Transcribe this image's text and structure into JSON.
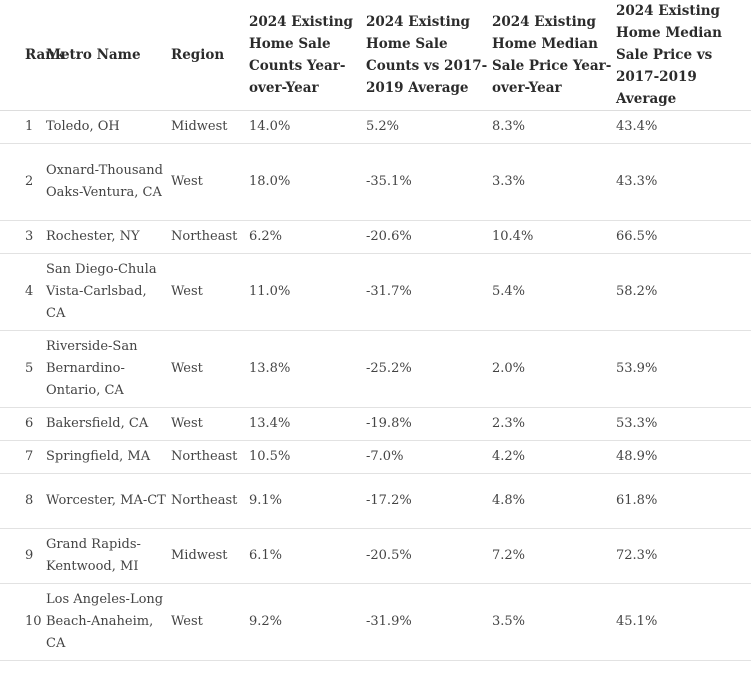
{
  "table": {
    "headers": {
      "rank": "Rank",
      "metro": "Metro Name",
      "region": "Region",
      "counts_yoy": "2024 Existing Home Sale Counts Year-over-Year",
      "counts_vs": "2024 Existing Home Sale Counts vs 2017-2019 Average",
      "price_yoy": "2024 Existing Home Median Sale Price Year-over-Year",
      "price_vs": "2024 Existing Home Median Sale Price vs 2017-2019 Average"
    },
    "rows": [
      {
        "rank": "1",
        "metro": "Toledo, OH",
        "region": "Midwest",
        "counts_yoy": "14.0%",
        "counts_vs": "5.2%",
        "price_yoy": "8.3%",
        "price_vs": "43.4%"
      },
      {
        "rank": "2",
        "metro": "Oxnard-Thousand Oaks-Ventura, CA",
        "region": "West",
        "counts_yoy": "18.0%",
        "counts_vs": "-35.1%",
        "price_yoy": "3.3%",
        "price_vs": "43.3%"
      },
      {
        "rank": "3",
        "metro": "Rochester, NY",
        "region": "Northeast",
        "counts_yoy": "6.2%",
        "counts_vs": "-20.6%",
        "price_yoy": "10.4%",
        "price_vs": "66.5%"
      },
      {
        "rank": "4",
        "metro": "San Diego-Chula Vista-Carlsbad, CA",
        "region": "West",
        "counts_yoy": "11.0%",
        "counts_vs": "-31.7%",
        "price_yoy": "5.4%",
        "price_vs": "58.2%"
      },
      {
        "rank": "5",
        "metro": "Riverside-San Bernardino-Ontario, CA",
        "region": "West",
        "counts_yoy": "13.8%",
        "counts_vs": "-25.2%",
        "price_yoy": "2.0%",
        "price_vs": "53.9%"
      },
      {
        "rank": "6",
        "metro": "Bakersfield, CA",
        "region": "West",
        "counts_yoy": "13.4%",
        "counts_vs": "-19.8%",
        "price_yoy": "2.3%",
        "price_vs": "53.3%"
      },
      {
        "rank": "7",
        "metro": "Springfield, MA",
        "region": "Northeast",
        "counts_yoy": "10.5%",
        "counts_vs": "-7.0%",
        "price_yoy": "4.2%",
        "price_vs": "48.9%"
      },
      {
        "rank": "8",
        "metro": "Worcester, MA-CT",
        "region": "Northeast",
        "counts_yoy": "9.1%",
        "counts_vs": "-17.2%",
        "price_yoy": "4.8%",
        "price_vs": "61.8%"
      },
      {
        "rank": "9",
        "metro": "Grand Rapids-Kentwood, MI",
        "region": "Midwest",
        "counts_yoy": "6.1%",
        "counts_vs": "-20.5%",
        "price_yoy": "7.2%",
        "price_vs": "72.3%"
      },
      {
        "rank": "10",
        "metro": "Los Angeles-Long Beach-Anaheim, CA",
        "region": "West",
        "counts_yoy": "9.2%",
        "counts_vs": "-31.9%",
        "price_yoy": "3.5%",
        "price_vs": "45.1%"
      }
    ]
  }
}
